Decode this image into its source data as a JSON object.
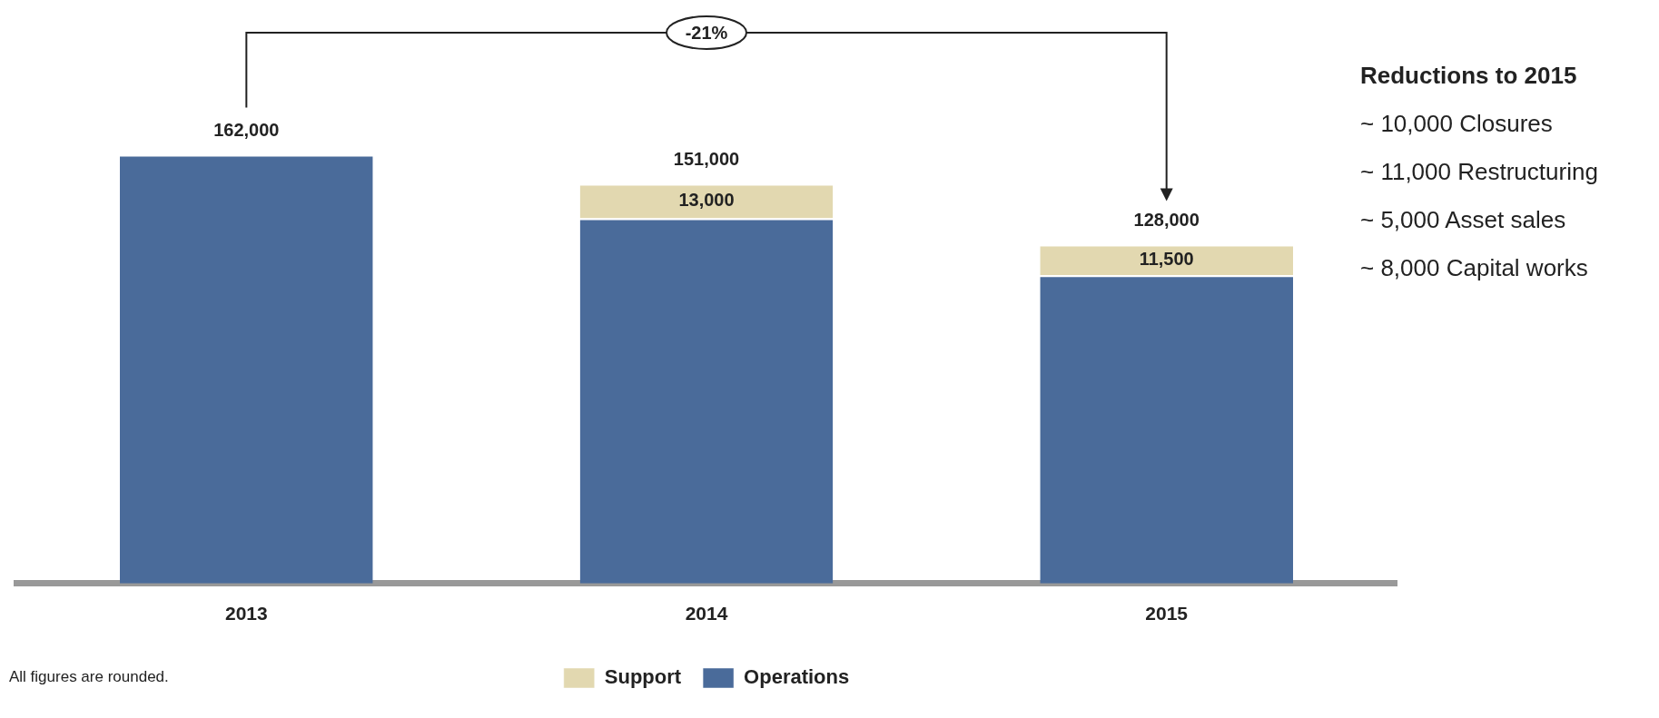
{
  "chart_data": {
    "type": "bar",
    "stacked": true,
    "categories": [
      "2013",
      "2014",
      "2015"
    ],
    "series": [
      {
        "name": "Operations",
        "color": "#4a6b9a",
        "values": [
          162000,
          138000,
          116500
        ]
      },
      {
        "name": "Support",
        "color": "#e2d8b0",
        "values": [
          null,
          13000,
          11500
        ],
        "value_labels": [
          null,
          "13,000",
          "11,500"
        ]
      }
    ],
    "totals": [
      "162,000",
      "151,000",
      "128,000"
    ],
    "tick_labels": "x",
    "grid": false,
    "legend": "bottom",
    "annotations": [
      "-21%",
      "Reductions to 2015",
      "~ 10,000 Closures",
      "~ 11,000 Restructuring",
      "~ 5,000 Asset sales",
      "~ 8,000 Capital works",
      "All figures are rounded."
    ]
  }
}
